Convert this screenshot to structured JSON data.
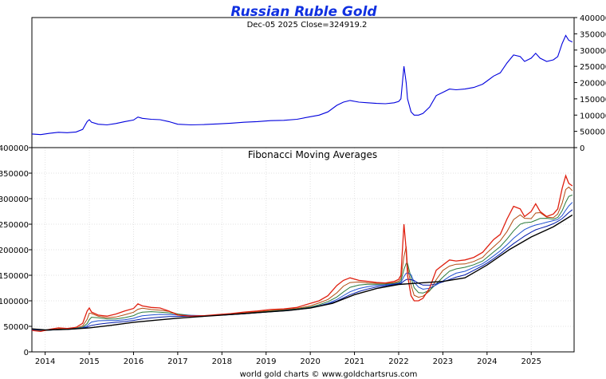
{
  "title": "Russian Ruble Gold",
  "close_info": "Dec-05  2025   Close=324919.2",
  "footer": "world gold charts © www.goldchartsrus.com",
  "colors": {
    "title": "#1030e0",
    "price": "#0000dd",
    "fib_fast": "#e02010",
    "fib_slow": "#000000"
  },
  "chart_data": [
    {
      "type": "line",
      "panel": "price",
      "x_range": [
        2013.7,
        2025.97
      ],
      "ylim": [
        0,
        400000
      ],
      "y_ticks": [
        0,
        50000,
        100000,
        150000,
        200000,
        250000,
        300000,
        350000,
        400000
      ],
      "y_axis_side": "right",
      "series": [
        {
          "x": [
            2013.7,
            2013.9,
            2014.1,
            2014.3,
            2014.5,
            2014.7,
            2014.85,
            2014.95,
            2015.0,
            2015.05,
            2015.2,
            2015.4,
            2015.6,
            2015.8,
            2016.0,
            2016.1,
            2016.2,
            2016.4,
            2016.6,
            2016.8,
            2017.0,
            2017.3,
            2017.6,
            2017.9,
            2018.2,
            2018.5,
            2018.8,
            2019.1,
            2019.4,
            2019.7,
            2020.0,
            2020.2,
            2020.4,
            2020.6,
            2020.75,
            2020.9,
            2021.1,
            2021.3,
            2021.5,
            2021.7,
            2021.9,
            2022.0,
            2022.05,
            2022.12,
            2022.17,
            2022.2,
            2022.28,
            2022.35,
            2022.45,
            2022.55,
            2022.7,
            2022.85,
            2023.0,
            2023.15,
            2023.3,
            2023.5,
            2023.7,
            2023.9,
            2024.0,
            2024.15,
            2024.3,
            2024.45,
            2024.6,
            2024.75,
            2024.85,
            2025.0,
            2025.1,
            2025.2,
            2025.35,
            2025.5,
            2025.6,
            2025.7,
            2025.78,
            2025.85,
            2025.93
          ],
          "y": [
            42000,
            40000,
            44000,
            47000,
            46000,
            48000,
            56000,
            80000,
            86000,
            78000,
            72000,
            70000,
            74000,
            80000,
            85000,
            94000,
            90000,
            87000,
            86000,
            80000,
            72000,
            70000,
            71000,
            73000,
            75000,
            78000,
            80000,
            83000,
            84000,
            87000,
            95000,
            100000,
            110000,
            130000,
            140000,
            145000,
            140000,
            138000,
            136000,
            135000,
            138000,
            142000,
            150000,
            250000,
            200000,
            150000,
            110000,
            100000,
            100000,
            105000,
            125000,
            160000,
            170000,
            180000,
            178000,
            180000,
            185000,
            195000,
            205000,
            220000,
            230000,
            260000,
            285000,
            280000,
            265000,
            275000,
            290000,
            275000,
            265000,
            270000,
            280000,
            320000,
            345000,
            330000,
            325000
          ]
        }
      ]
    },
    {
      "type": "line",
      "panel": "fibonacci",
      "subtitle": "Fibonacci Moving Averages",
      "x_range": [
        2013.7,
        2025.97
      ],
      "ylim": [
        0,
        400000
      ],
      "y_ticks": [
        0,
        50000,
        100000,
        150000,
        200000,
        250000,
        300000,
        350000,
        400000
      ],
      "y_axis_side": "left",
      "x_tick_labels": [
        "2014",
        "2015",
        "2016",
        "2017",
        "2018",
        "2019",
        "2020",
        "2021",
        "2022",
        "2023",
        "2024",
        "2025"
      ],
      "x_tick_values": [
        2014,
        2015,
        2016,
        2017,
        2018,
        2019,
        2020,
        2021,
        2022,
        2023,
        2024,
        2025
      ],
      "series": [
        {
          "x": [
            2013.7,
            2013.9,
            2014.1,
            2014.3,
            2014.5,
            2014.7,
            2014.85,
            2014.95,
            2015.0,
            2015.05,
            2015.2,
            2015.4,
            2015.6,
            2015.8,
            2016.0,
            2016.1,
            2016.2,
            2016.4,
            2016.6,
            2016.8,
            2017.0,
            2017.3,
            2017.6,
            2017.9,
            2018.2,
            2018.5,
            2018.8,
            2019.1,
            2019.4,
            2019.7,
            2020.0,
            2020.2,
            2020.4,
            2020.6,
            2020.75,
            2020.9,
            2021.1,
            2021.3,
            2021.5,
            2021.7,
            2021.9,
            2022.0,
            2022.05,
            2022.12,
            2022.17,
            2022.2,
            2022.28,
            2022.35,
            2022.45,
            2022.55,
            2022.7,
            2022.85,
            2023.0,
            2023.15,
            2023.3,
            2023.5,
            2023.7,
            2023.9,
            2024.0,
            2024.15,
            2024.3,
            2024.45,
            2024.6,
            2024.75,
            2024.85,
            2025.0,
            2025.1,
            2025.2,
            2025.35,
            2025.5,
            2025.6,
            2025.7,
            2025.78,
            2025.85,
            2025.93
          ],
          "y": [
            42000,
            40000,
            44000,
            47000,
            46000,
            48000,
            56000,
            80000,
            86000,
            78000,
            72000,
            70000,
            74000,
            80000,
            85000,
            94000,
            90000,
            87000,
            86000,
            80000,
            72000,
            70000,
            71000,
            73000,
            75000,
            78000,
            80000,
            83000,
            84000,
            87000,
            95000,
            100000,
            110000,
            130000,
            140000,
            145000,
            140000,
            138000,
            136000,
            135000,
            138000,
            142000,
            150000,
            250000,
            200000,
            150000,
            110000,
            100000,
            100000,
            105000,
            125000,
            160000,
            170000,
            180000,
            178000,
            180000,
            185000,
            195000,
            205000,
            220000,
            230000,
            260000,
            285000,
            280000,
            265000,
            275000,
            290000,
            275000,
            265000,
            270000,
            280000,
            320000,
            345000,
            330000,
            325000
          ]
        },
        {
          "x": [
            2013.7,
            2014.0,
            2014.5,
            2015.0,
            2015.5,
            2016.0,
            2016.5,
            2017.0,
            2017.5,
            2018.0,
            2018.5,
            2019.0,
            2019.5,
            2020.0,
            2020.5,
            2021.0,
            2021.5,
            2022.0,
            2022.5,
            2023.0,
            2023.5,
            2024.0,
            2024.5,
            2025.0,
            2025.5,
            2025.93
          ],
          "y": [
            45000,
            43000,
            44000,
            47000,
            52000,
            58000,
            62000,
            66000,
            69000,
            72000,
            75000,
            78000,
            81000,
            86000,
            95000,
            112000,
            124000,
            132000,
            135000,
            138000,
            145000,
            170000,
            200000,
            225000,
            245000,
            268000
          ]
        }
      ]
    }
  ]
}
